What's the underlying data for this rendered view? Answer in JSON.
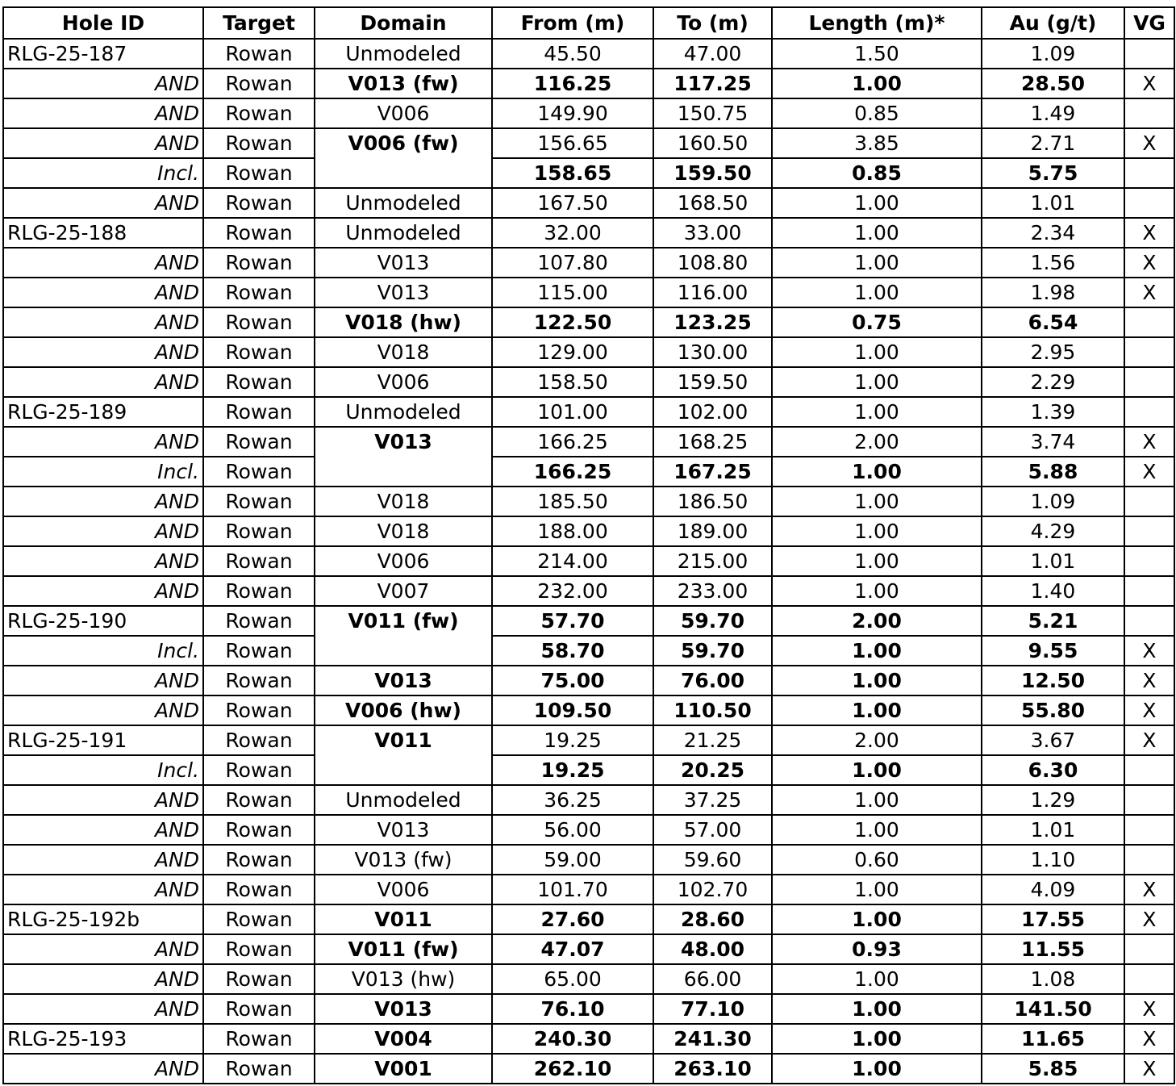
{
  "headers": [
    "Hole ID",
    "Target",
    "Domain",
    "From (m)",
    "To (m)",
    "Length (m)*",
    "Au (g/t)",
    "VG"
  ],
  "rows": [
    {
      "hole": "RLG-25-187",
      "target": "Rowan",
      "domain": "Unmodeled",
      "from": "45.50",
      "to": "47.00",
      "length": "1.50",
      "au": "1.09",
      "vg": "",
      "bold": false
    },
    {
      "hole": "AND",
      "target": "Rowan",
      "domain": "V013 (fw)",
      "domain_bold": true,
      "from": "116.25",
      "to": "117.25",
      "length": "1.00",
      "au": "28.50",
      "vg": "X",
      "bold": true
    },
    {
      "hole": "AND",
      "target": "Rowan",
      "domain": "V006",
      "from": "149.90",
      "to": "150.75",
      "length": "0.85",
      "au": "1.49",
      "vg": "",
      "bold": false
    },
    {
      "hole": "AND",
      "target": "Rowan",
      "domain": "V006 (fw)",
      "domain_bold": true,
      "domain_rowspan": 2,
      "from": "156.65",
      "to": "160.50",
      "length": "3.85",
      "au": "2.71",
      "vg": "X",
      "bold": false
    },
    {
      "hole": "Incl.",
      "target": "Rowan",
      "domain_merged": true,
      "from": "158.65",
      "to": "159.50",
      "length": "0.85",
      "au": "5.75",
      "vg": "",
      "bold": true
    },
    {
      "hole": "AND",
      "target": "Rowan",
      "domain": "Unmodeled",
      "from": "167.50",
      "to": "168.50",
      "length": "1.00",
      "au": "1.01",
      "vg": "",
      "bold": false
    },
    {
      "hole": "RLG-25-188",
      "target": "Rowan",
      "domain": "Unmodeled",
      "from": "32.00",
      "to": "33.00",
      "length": "1.00",
      "au": "2.34",
      "vg": "X",
      "bold": false
    },
    {
      "hole": "AND",
      "target": "Rowan",
      "domain": "V013",
      "from": "107.80",
      "to": "108.80",
      "length": "1.00",
      "au": "1.56",
      "vg": "X",
      "bold": false
    },
    {
      "hole": "AND",
      "target": "Rowan",
      "domain": "V013",
      "from": "115.00",
      "to": "116.00",
      "length": "1.00",
      "au": "1.98",
      "vg": "X",
      "bold": false
    },
    {
      "hole": "AND",
      "target": "Rowan",
      "domain": "V018 (hw)",
      "domain_bold": true,
      "from": "122.50",
      "to": "123.25",
      "length": "0.75",
      "au": "6.54",
      "vg": "",
      "bold": true
    },
    {
      "hole": "AND",
      "target": "Rowan",
      "domain": "V018",
      "from": "129.00",
      "to": "130.00",
      "length": "1.00",
      "au": "2.95",
      "vg": "",
      "bold": false
    },
    {
      "hole": "AND",
      "target": "Rowan",
      "domain": "V006",
      "from": "158.50",
      "to": "159.50",
      "length": "1.00",
      "au": "2.29",
      "vg": "",
      "bold": false
    },
    {
      "hole": "RLG-25-189",
      "target": "Rowan",
      "domain": "Unmodeled",
      "from": "101.00",
      "to": "102.00",
      "length": "1.00",
      "au": "1.39",
      "vg": "",
      "bold": false
    },
    {
      "hole": "AND",
      "target": "Rowan",
      "domain": "V013",
      "domain_bold": true,
      "domain_rowspan": 2,
      "from": "166.25",
      "to": "168.25",
      "length": "2.00",
      "au": "3.74",
      "vg": "X",
      "bold": false
    },
    {
      "hole": "Incl.",
      "target": "Rowan",
      "domain_merged": true,
      "from": "166.25",
      "to": "167.25",
      "length": "1.00",
      "au": "5.88",
      "vg": "X",
      "bold": true
    },
    {
      "hole": "AND",
      "target": "Rowan",
      "domain": "V018",
      "from": "185.50",
      "to": "186.50",
      "length": "1.00",
      "au": "1.09",
      "vg": "",
      "bold": false
    },
    {
      "hole": "AND",
      "target": "Rowan",
      "domain": "V018",
      "from": "188.00",
      "to": "189.00",
      "length": "1.00",
      "au": "4.29",
      "vg": "",
      "bold": false
    },
    {
      "hole": "AND",
      "target": "Rowan",
      "domain": "V006",
      "from": "214.00",
      "to": "215.00",
      "length": "1.00",
      "au": "1.01",
      "vg": "",
      "bold": false
    },
    {
      "hole": "AND",
      "target": "Rowan",
      "domain": "V007",
      "from": "232.00",
      "to": "233.00",
      "length": "1.00",
      "au": "1.40",
      "vg": "",
      "bold": false
    },
    {
      "hole": "RLG-25-190",
      "target": "Rowan",
      "domain": "V011 (fw)",
      "domain_bold": true,
      "domain_rowspan": 2,
      "from": "57.70",
      "to": "59.70",
      "length": "2.00",
      "au": "5.21",
      "vg": "",
      "bold": true
    },
    {
      "hole": "Incl.",
      "target": "Rowan",
      "domain_merged": true,
      "from": "58.70",
      "to": "59.70",
      "length": "1.00",
      "au": "9.55",
      "vg": "X",
      "bold": true
    },
    {
      "hole": "AND",
      "target": "Rowan",
      "domain": "V013",
      "domain_bold": true,
      "from": "75.00",
      "to": "76.00",
      "length": "1.00",
      "au": "12.50",
      "vg": "X",
      "bold": true
    },
    {
      "hole": "AND",
      "target": "Rowan",
      "domain": "V006 (hw)",
      "domain_bold": true,
      "from": "109.50",
      "to": "110.50",
      "length": "1.00",
      "au": "55.80",
      "vg": "X",
      "bold": true
    },
    {
      "hole": "RLG-25-191",
      "target": "Rowan",
      "domain": "V011",
      "domain_bold": true,
      "domain_rowspan": 2,
      "from": "19.25",
      "to": "21.25",
      "length": "2.00",
      "au": "3.67",
      "vg": "X",
      "bold": false
    },
    {
      "hole": "Incl.",
      "target": "Rowan",
      "domain_merged": true,
      "from": "19.25",
      "to": "20.25",
      "length": "1.00",
      "au": "6.30",
      "vg": "",
      "bold": true
    },
    {
      "hole": "AND",
      "target": "Rowan",
      "domain": "Unmodeled",
      "from": "36.25",
      "to": "37.25",
      "length": "1.00",
      "au": "1.29",
      "vg": "",
      "bold": false
    },
    {
      "hole": "AND",
      "target": "Rowan",
      "domain": "V013",
      "from": "56.00",
      "to": "57.00",
      "length": "1.00",
      "au": "1.01",
      "vg": "",
      "bold": false
    },
    {
      "hole": "AND",
      "target": "Rowan",
      "domain": "V013 (fw)",
      "from": "59.00",
      "to": "59.60",
      "length": "0.60",
      "au": "1.10",
      "vg": "",
      "bold": false
    },
    {
      "hole": "AND",
      "target": "Rowan",
      "domain": "V006",
      "from": "101.70",
      "to": "102.70",
      "length": "1.00",
      "au": "4.09",
      "vg": "X",
      "bold": false
    },
    {
      "hole": "RLG-25-192b",
      "target": "Rowan",
      "domain": "V011",
      "domain_bold": true,
      "from": "27.60",
      "to": "28.60",
      "length": "1.00",
      "au": "17.55",
      "vg": "X",
      "bold": true
    },
    {
      "hole": "AND",
      "target": "Rowan",
      "domain": "V011 (fw)",
      "domain_bold": true,
      "from": "47.07",
      "to": "48.00",
      "length": "0.93",
      "au": "11.55",
      "vg": "",
      "bold": true
    },
    {
      "hole": "AND",
      "target": "Rowan",
      "domain": "V013 (hw)",
      "from": "65.00",
      "to": "66.00",
      "length": "1.00",
      "au": "1.08",
      "vg": "",
      "bold": false
    },
    {
      "hole": "AND",
      "target": "Rowan",
      "domain": "V013",
      "domain_bold": true,
      "from": "76.10",
      "to": "77.10",
      "length": "1.00",
      "au": "141.50",
      "vg": "X",
      "bold": true
    },
    {
      "hole": "RLG-25-193",
      "target": "Rowan",
      "domain": "V004",
      "domain_bold": true,
      "from": "240.30",
      "to": "241.30",
      "length": "1.00",
      "au": "11.65",
      "vg": "X",
      "bold": true
    },
    {
      "hole": "AND",
      "target": "Rowan",
      "domain": "V001",
      "domain_bold": true,
      "from": "262.10",
      "to": "263.10",
      "length": "1.00",
      "au": "5.85",
      "vg": "X",
      "bold": true
    }
  ]
}
